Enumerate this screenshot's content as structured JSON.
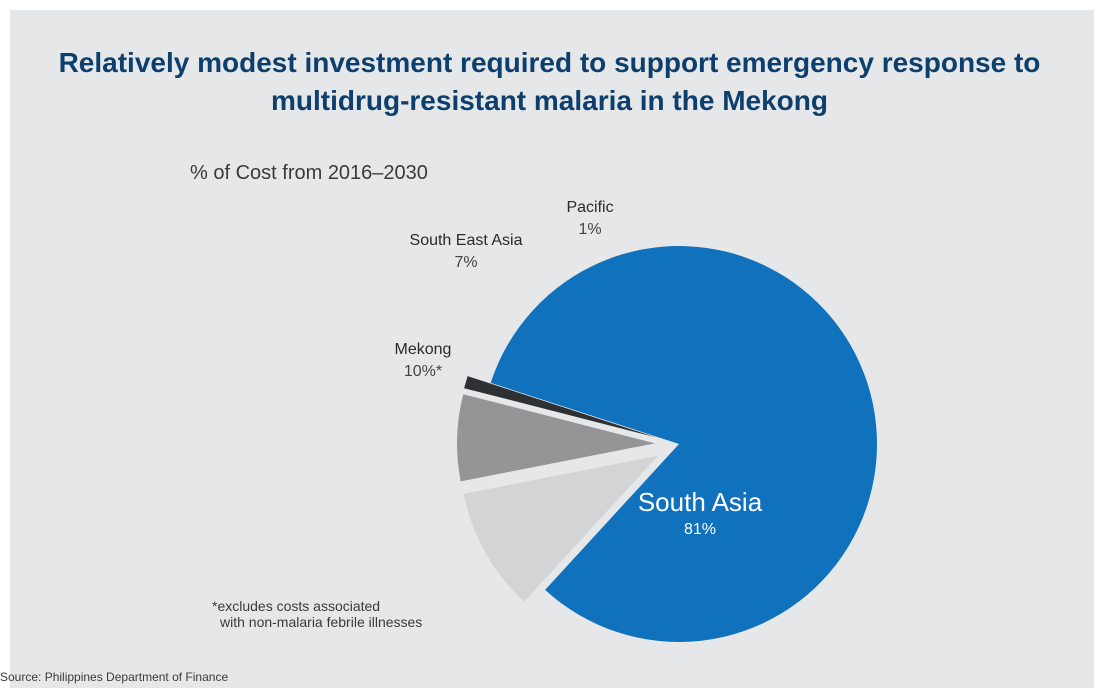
{
  "chart_data": {
    "type": "pie",
    "title_lines": [
      "Relatively modest investment required to support emergency response to",
      "multidrug-resistant malaria in the Mekong"
    ],
    "subtitle": "% of Cost from 2016–2030",
    "slices": [
      {
        "label": "South Asia",
        "value": 81,
        "value_label": "81%",
        "color": "#1071bd",
        "exploded": false
      },
      {
        "label": "Mekong",
        "value": 10,
        "value_label": "10%*",
        "color": "#d3d4d5",
        "exploded": true
      },
      {
        "label": "South East Asia",
        "value": 7,
        "value_label": "7%",
        "color": "#939597",
        "exploded": true
      },
      {
        "label": "Pacific",
        "value": 1,
        "value_label": "1%",
        "color": "#2e3133",
        "exploded": true
      }
    ],
    "footnote_lines": [
      "*excludes costs associated",
      "with non-malaria febrile illnesses"
    ],
    "source": "Source: Philippines Department of Finance"
  }
}
